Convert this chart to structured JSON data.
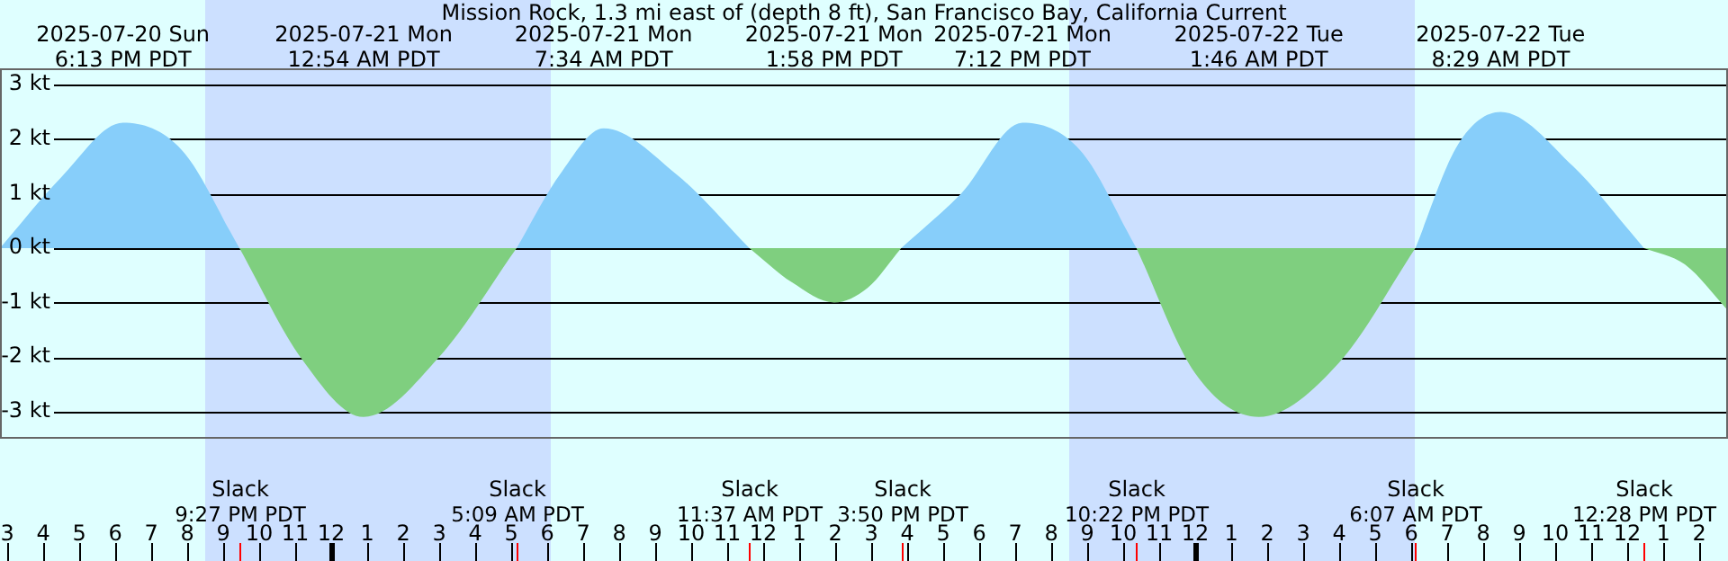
{
  "chart_data": {
    "type": "area",
    "title": "Mission Rock, 1.3 mi east of (depth 8 ft), San Francisco Bay, California Current",
    "x": [
      "2025-07-20T14:48",
      "2025-07-20T16:30",
      "2025-07-20T18:13",
      "2025-07-20T19:51",
      "2025-07-20T21:27",
      "2025-07-20T23:12",
      "2025-07-21T00:54",
      "2025-07-21T03:00",
      "2025-07-21T05:09",
      "2025-07-21T06:21",
      "2025-07-21T07:34",
      "2025-07-21T09:36",
      "2025-07-21T11:37",
      "2025-07-21T12:48",
      "2025-07-21T13:58",
      "2025-07-21T14:54",
      "2025-07-21T15:50",
      "2025-07-21T17:30",
      "2025-07-21T19:12",
      "2025-07-21T20:48",
      "2025-07-21T22:22",
      "2025-07-22T00:00",
      "2025-07-22T01:46",
      "2025-07-22T04:00",
      "2025-07-22T06:07",
      "2025-07-22T07:18",
      "2025-07-22T08:29",
      "2025-07-22T10:30",
      "2025-07-22T12:28",
      "2025-07-22T13:36",
      "2025-07-22T14:48"
    ],
    "series": [
      {
        "color": "#87cefa",
        "values": [
          0,
          1.3,
          2.3,
          1.8,
          0,
          null,
          null,
          null,
          0,
          1.35,
          2.2,
          1.35,
          0,
          null,
          null,
          null,
          0,
          1.0,
          2.3,
          1.8,
          0,
          null,
          null,
          null,
          0,
          1.9,
          2.5,
          1.5,
          0,
          null,
          null
        ]
      },
      {
        "color": "#7fcf7f",
        "values": [
          null,
          null,
          null,
          null,
          0,
          -2.05,
          -3.1,
          -2.0,
          0,
          null,
          null,
          null,
          0,
          -0.63,
          -1.0,
          -0.73,
          0,
          null,
          null,
          null,
          0,
          -2.3,
          -3.1,
          -2.1,
          0,
          null,
          null,
          null,
          0,
          -0.3,
          -1.15
        ]
      }
    ],
    "xlim": [
      "2025-07-20T14:48",
      "2025-07-22T14:48"
    ],
    "xticks": [
      {
        "value": "2025-07-20T15:00",
        "label": "3"
      },
      {
        "value": "2025-07-20T16:00",
        "label": "4"
      },
      {
        "value": "2025-07-20T17:00",
        "label": "5"
      },
      {
        "value": "2025-07-20T18:00",
        "label": "6"
      },
      {
        "value": "2025-07-20T19:00",
        "label": "7"
      },
      {
        "value": "2025-07-20T20:00",
        "label": "8"
      },
      {
        "value": "2025-07-20T21:00",
        "label": "9"
      },
      {
        "value": "2025-07-20T22:00",
        "label": "10"
      },
      {
        "value": "2025-07-20T23:00",
        "label": "11"
      },
      {
        "value": "2025-07-21T00:00",
        "label": "12"
      },
      {
        "value": "2025-07-21T01:00",
        "label": "1"
      },
      {
        "value": "2025-07-21T02:00",
        "label": "2"
      },
      {
        "value": "2025-07-21T03:00",
        "label": "3"
      },
      {
        "value": "2025-07-21T04:00",
        "label": "4"
      },
      {
        "value": "2025-07-21T05:00",
        "label": "5"
      },
      {
        "value": "2025-07-21T06:00",
        "label": "6"
      },
      {
        "value": "2025-07-21T07:00",
        "label": "7"
      },
      {
        "value": "2025-07-21T08:00",
        "label": "8"
      },
      {
        "value": "2025-07-21T09:00",
        "label": "9"
      },
      {
        "value": "2025-07-21T10:00",
        "label": "10"
      },
      {
        "value": "2025-07-21T11:00",
        "label": "11"
      },
      {
        "value": "2025-07-21T12:00",
        "label": "12"
      },
      {
        "value": "2025-07-21T13:00",
        "label": "1"
      },
      {
        "value": "2025-07-21T14:00",
        "label": "2"
      },
      {
        "value": "2025-07-21T15:00",
        "label": "3"
      },
      {
        "value": "2025-07-21T16:00",
        "label": "4"
      },
      {
        "value": "2025-07-21T17:00",
        "label": "5"
      },
      {
        "value": "2025-07-21T18:00",
        "label": "6"
      },
      {
        "value": "2025-07-21T19:00",
        "label": "7"
      },
      {
        "value": "2025-07-21T20:00",
        "label": "8"
      },
      {
        "value": "2025-07-21T21:00",
        "label": "9"
      },
      {
        "value": "2025-07-21T22:00",
        "label": "10"
      },
      {
        "value": "2025-07-21T23:00",
        "label": "11"
      },
      {
        "value": "2025-07-22T00:00",
        "label": "12"
      },
      {
        "value": "2025-07-22T01:00",
        "label": "1"
      },
      {
        "value": "2025-07-22T02:00",
        "label": "2"
      },
      {
        "value": "2025-07-22T03:00",
        "label": "3"
      },
      {
        "value": "2025-07-22T04:00",
        "label": "4"
      },
      {
        "value": "2025-07-22T05:00",
        "label": "5"
      },
      {
        "value": "2025-07-22T06:00",
        "label": "6"
      },
      {
        "value": "2025-07-22T07:00",
        "label": "7"
      },
      {
        "value": "2025-07-22T08:00",
        "label": "8"
      },
      {
        "value": "2025-07-22T09:00",
        "label": "9"
      },
      {
        "value": "2025-07-22T10:00",
        "label": "10"
      },
      {
        "value": "2025-07-22T11:00",
        "label": "11"
      },
      {
        "value": "2025-07-22T12:00",
        "label": "12"
      },
      {
        "value": "2025-07-22T13:00",
        "label": "1"
      },
      {
        "value": "2025-07-22T14:00",
        "label": "2"
      }
    ],
    "ylim": [
      -3.5,
      3.3
    ],
    "yticks": [
      {
        "value": 3,
        "label": "3 kt"
      },
      {
        "value": 2,
        "label": "2 kt"
      },
      {
        "value": 1,
        "label": "1 kt"
      },
      {
        "value": 0,
        "label": "0 kt"
      },
      {
        "value": -1,
        "label": "-1 kt"
      },
      {
        "value": -2,
        "label": "-2 kt"
      },
      {
        "value": -3,
        "label": "-3 kt"
      }
    ],
    "grid": "y",
    "marker": "none",
    "bands": [
      {
        "axis": "x",
        "from": "2025-07-20T20:30",
        "to": "2025-07-21T06:06",
        "color": "#cce0ff"
      },
      {
        "axis": "x",
        "from": "2025-07-21T20:30",
        "to": "2025-07-22T06:06",
        "color": "#cce0ff"
      }
    ],
    "ref_lines": [
      {
        "axis": "x",
        "value": "2025-07-20T21:27",
        "label": "Slack\n9:27 PM PDT",
        "color": "#ff0000"
      },
      {
        "axis": "x",
        "value": "2025-07-21T05:09",
        "label": "Slack\n5:09 AM PDT",
        "color": "#ff0000"
      },
      {
        "axis": "x",
        "value": "2025-07-21T11:37",
        "label": "Slack\n11:37 AM PDT",
        "color": "#ff0000"
      },
      {
        "axis": "x",
        "value": "2025-07-21T15:50",
        "label": "Slack\n3:50 PM PDT",
        "color": "#ff0000"
      },
      {
        "axis": "x",
        "value": "2025-07-21T22:22",
        "label": "Slack\n10:22 PM PDT",
        "color": "#ff0000"
      },
      {
        "axis": "x",
        "value": "2025-07-22T06:07",
        "label": "Slack\n6:07 AM PDT",
        "color": "#ff0000"
      },
      {
        "axis": "x",
        "value": "2025-07-22T12:28",
        "label": "Slack\n12:28 PM PDT",
        "color": "#ff0000"
      }
    ],
    "annotations": [
      "2025-07-20 Sun\n6:13 PM PDT",
      "2025-07-21 Mon\n12:54 AM PDT",
      "2025-07-21 Mon\n7:34 AM PDT",
      "2025-07-21 Mon\n1:58 PM PDT",
      "2025-07-21 Mon\n7:12 PM PDT",
      "2025-07-22 Tue\n1:46 AM PDT",
      "2025-07-22 Tue\n8:29 AM PDT"
    ]
  }
}
